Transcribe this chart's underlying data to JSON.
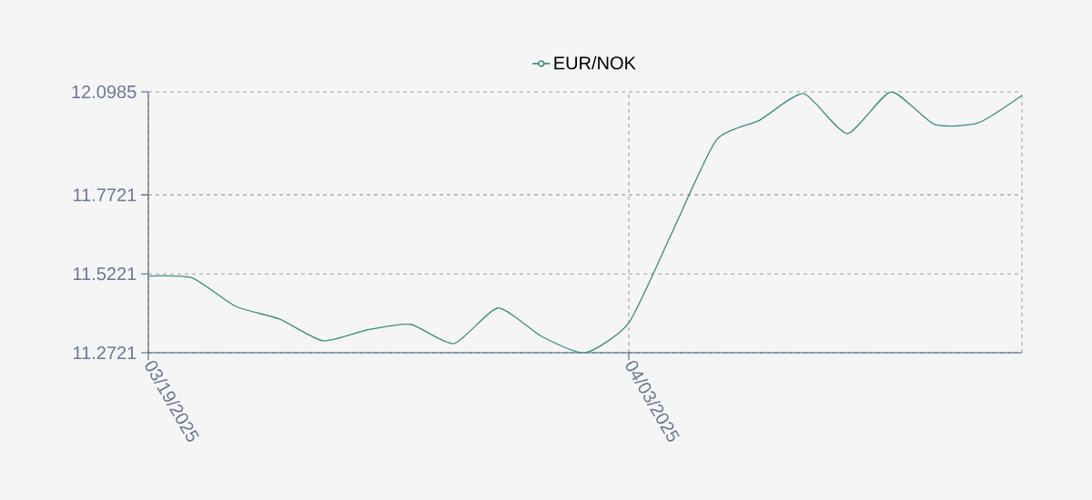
{
  "chart_data": {
    "type": "line",
    "categories": [
      "03/19/2025",
      null,
      null,
      null,
      null,
      null,
      null,
      null,
      null,
      null,
      null,
      "04/03/2025",
      null,
      null,
      null,
      null,
      null,
      null,
      null,
      null,
      null
    ],
    "series": [
      {
        "name": "EUR/NOK",
        "color": "#3a8f80",
        "values": [
          11.515,
          11.509,
          11.419,
          11.379,
          11.31,
          11.344,
          11.362,
          11.301,
          11.414,
          11.324,
          11.2721,
          11.367,
          11.656,
          11.945,
          12.009,
          12.093,
          11.966,
          12.0985,
          11.995,
          12.0,
          12.087
        ]
      }
    ],
    "ylim": [
      11.2721,
      12.0985
    ],
    "yticks": [
      11.2721,
      11.5221,
      11.7721,
      12.0985
    ],
    "grid": true,
    "legend": "top",
    "line_style": "solid"
  }
}
